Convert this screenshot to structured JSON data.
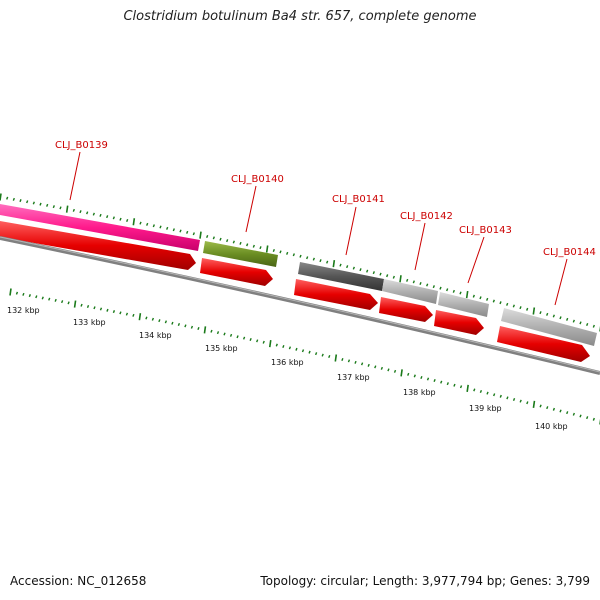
{
  "title": "Clostridium botulinum Ba4 str. 657, complete genome",
  "accession": "Accession: NC_012658",
  "summary": "Topology: circular; Length: 3,977,794 bp; Genes: 3,799",
  "genes": [
    {
      "label": "CLJ_B0139",
      "color": "#ff1a8c"
    },
    {
      "label": "CLJ_B0140",
      "color": "#6b8e23"
    },
    {
      "label": "CLJ_B0141",
      "color": "#555555"
    },
    {
      "label": "CLJ_B0142",
      "color": "#aaaaaa"
    },
    {
      "label": "CLJ_B0143",
      "color": "#aaaaaa"
    },
    {
      "label": "CLJ_B0144",
      "color": "#bbbbbb"
    }
  ],
  "scale_labels": [
    "132 kbp",
    "133 kbp",
    "134 kbp",
    "135 kbp",
    "136 kbp",
    "137 kbp",
    "138 kbp",
    "139 kbp",
    "140 kbp"
  ],
  "colors": {
    "label": "#cc0000",
    "tick": "#1a7a1a",
    "cds": "#e60000",
    "backbone": "#808080"
  }
}
